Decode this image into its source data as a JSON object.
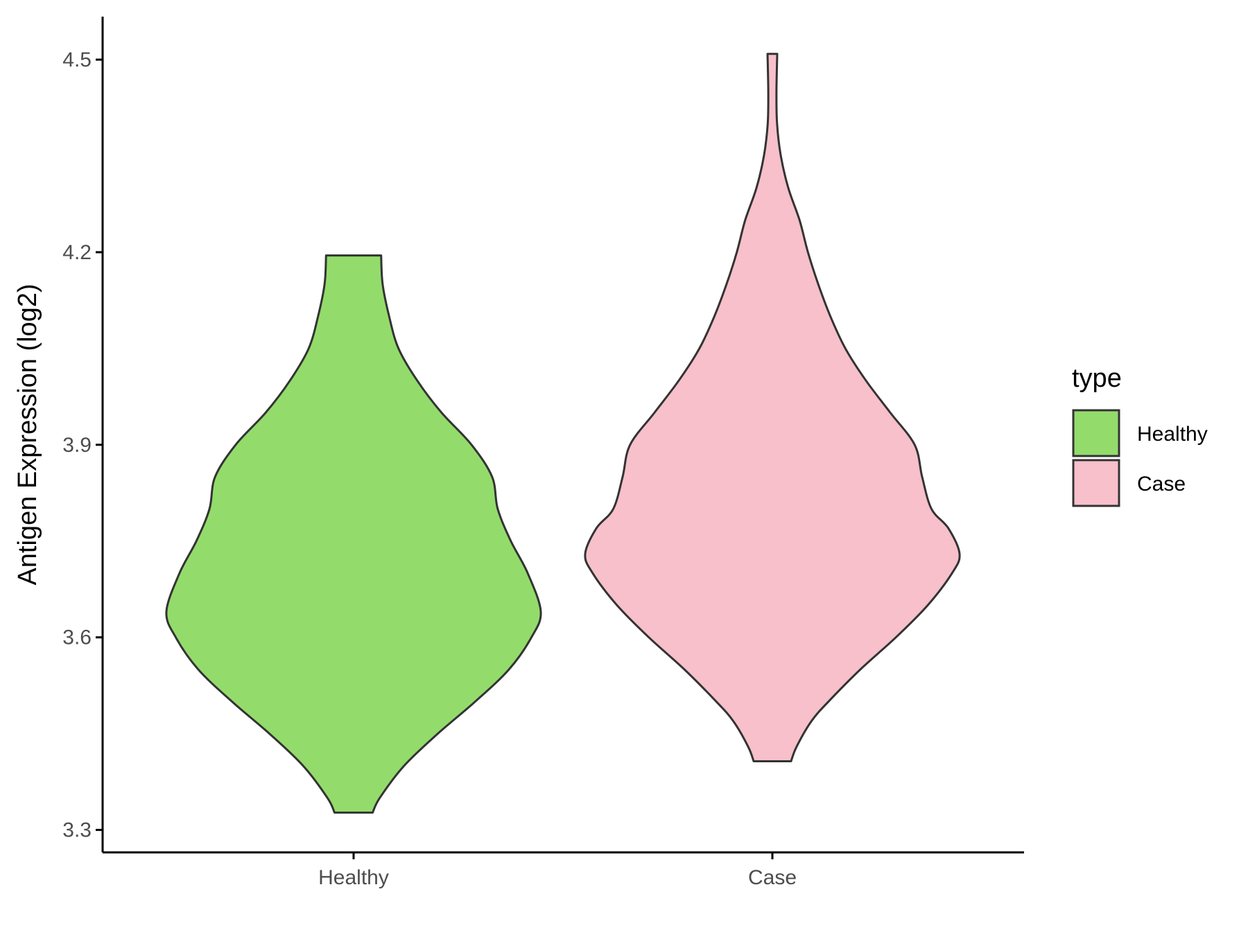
{
  "chart_data": {
    "type": "violin",
    "title": "",
    "xlabel": "",
    "ylabel": "Antigen Expression (log2)",
    "ylim": [
      3.265,
      4.567
    ],
    "yticks": [
      "3.3",
      "3.6",
      "3.9",
      "4.2",
      "4.5"
    ],
    "grid": false,
    "legend": {
      "title": "type",
      "position": "right",
      "entries": [
        "Healthy",
        "Case"
      ]
    },
    "categories": [
      "Healthy",
      "Case"
    ],
    "series": [
      {
        "name": "Healthy",
        "color": "#93dc6b",
        "min": 3.327,
        "max": 4.195,
        "profile": [
          [
            3.327,
            0.102
          ],
          [
            3.35,
            0.14
          ],
          [
            3.4,
            0.27
          ],
          [
            3.45,
            0.45
          ],
          [
            3.5,
            0.65
          ],
          [
            3.55,
            0.83
          ],
          [
            3.6,
            0.95
          ],
          [
            3.64,
            1.0
          ],
          [
            3.7,
            0.93
          ],
          [
            3.75,
            0.84
          ],
          [
            3.8,
            0.77
          ],
          [
            3.85,
            0.74
          ],
          [
            3.9,
            0.63
          ],
          [
            3.95,
            0.47
          ],
          [
            4.0,
            0.34
          ],
          [
            4.05,
            0.24
          ],
          [
            4.1,
            0.19
          ],
          [
            4.15,
            0.155
          ],
          [
            4.195,
            0.147
          ]
        ]
      },
      {
        "name": "Case",
        "color": "#f7c0cb",
        "min": 3.407,
        "max": 4.509,
        "profile": [
          [
            3.407,
            0.1
          ],
          [
            3.43,
            0.13
          ],
          [
            3.47,
            0.21
          ],
          [
            3.5,
            0.3
          ],
          [
            3.55,
            0.47
          ],
          [
            3.6,
            0.66
          ],
          [
            3.65,
            0.83
          ],
          [
            3.7,
            0.96
          ],
          [
            3.73,
            1.0
          ],
          [
            3.77,
            0.94
          ],
          [
            3.8,
            0.85
          ],
          [
            3.85,
            0.8
          ],
          [
            3.9,
            0.76
          ],
          [
            3.95,
            0.63
          ],
          [
            4.0,
            0.5
          ],
          [
            4.05,
            0.39
          ],
          [
            4.1,
            0.31
          ],
          [
            4.15,
            0.245
          ],
          [
            4.2,
            0.19
          ],
          [
            4.25,
            0.145
          ],
          [
            4.3,
            0.085
          ],
          [
            4.35,
            0.045
          ],
          [
            4.4,
            0.025
          ],
          [
            4.45,
            0.022
          ],
          [
            4.509,
            0.026
          ]
        ]
      }
    ]
  }
}
